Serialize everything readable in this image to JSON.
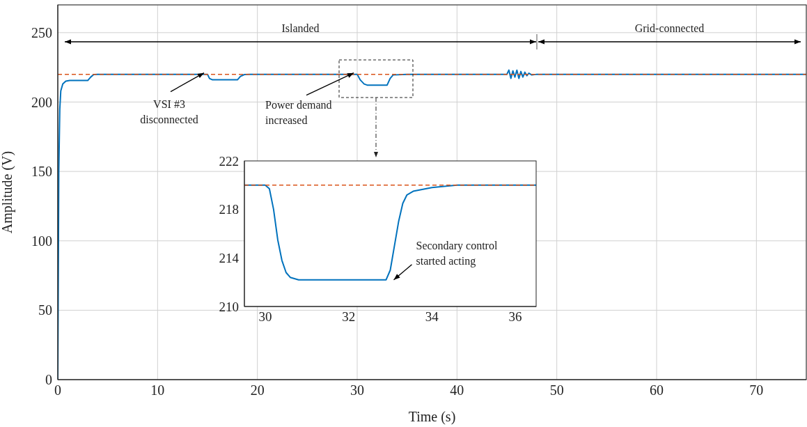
{
  "chart_data": [
    {
      "type": "line",
      "xlabel": "Time (s)",
      "ylabel": "Amplitude (V)",
      "x": [
        0,
        0.1,
        0.2,
        0.3,
        0.5,
        0.8,
        1.2,
        3.0,
        3.3,
        3.6,
        4.0,
        15.0,
        15.2,
        15.5,
        18.0,
        18.3,
        18.7,
        19.2,
        30.0,
        30.3,
        30.7,
        31.0,
        33.0,
        33.3,
        33.6,
        35.0,
        45.0,
        45.2,
        45.4,
        45.6,
        45.8,
        46.0,
        46.2,
        46.4,
        46.6,
        46.8,
        47.0,
        47.2,
        47.5,
        48.0,
        75
      ],
      "series": [
        {
          "color": "#0072bd",
          "values": [
            0,
            150,
            195,
            208,
            213,
            215,
            215.5,
            215.5,
            218,
            219.8,
            220,
            220,
            217,
            216,
            216,
            218.5,
            219.8,
            220,
            220,
            216,
            213,
            212.2,
            212.2,
            217,
            219.5,
            220,
            220,
            223,
            217,
            222.5,
            218,
            223,
            217,
            222,
            218,
            221.5,
            219,
            220.8,
            219.5,
            220,
            220
          ]
        }
      ],
      "xlim": [
        0,
        75
      ],
      "ylim": [
        0,
        270
      ],
      "xticks": [
        0,
        10,
        20,
        30,
        40,
        50,
        60,
        70
      ],
      "yticks": [
        0,
        50,
        100,
        150,
        200,
        250
      ],
      "grid": true,
      "ref_lines": [
        {
          "axis": "y",
          "value": 220,
          "color": "#d95319",
          "line_style": "dashed"
        }
      ],
      "annotations": [
        {
          "text": "VSI #3\ndisconnected",
          "x": 15,
          "y": 220
        },
        {
          "text": "Power demand\nincreased",
          "x": 30,
          "y": 220
        },
        "Islanded",
        "Grid-connected"
      ]
    },
    {
      "type": "line",
      "x": [
        29.5,
        30.0,
        30.1,
        30.2,
        30.3,
        30.4,
        30.5,
        30.6,
        30.8,
        32.9,
        33.0,
        33.1,
        33.2,
        33.3,
        33.4,
        33.55,
        34.0,
        34.6,
        36.5
      ],
      "series": [
        {
          "color": "#0072bd",
          "values": [
            220,
            220,
            219.7,
            218,
            215.5,
            213.8,
            212.8,
            212.4,
            212.2,
            212.2,
            213,
            215,
            217,
            218.5,
            219.2,
            219.5,
            219.8,
            220,
            220
          ]
        }
      ],
      "xlim": [
        29.5,
        36.5
      ],
      "ylim": [
        210,
        222
      ],
      "xticks": [
        30,
        32,
        34,
        36
      ],
      "yticks": [
        210,
        214,
        218,
        222
      ],
      "ref_lines": [
        {
          "axis": "y",
          "value": 220,
          "color": "#d95319",
          "line_style": "dashed"
        }
      ],
      "annotations": [
        {
          "text": "Secondary control\nstarted acting",
          "x": 33,
          "y": 212.2
        }
      ]
    }
  ]
}
